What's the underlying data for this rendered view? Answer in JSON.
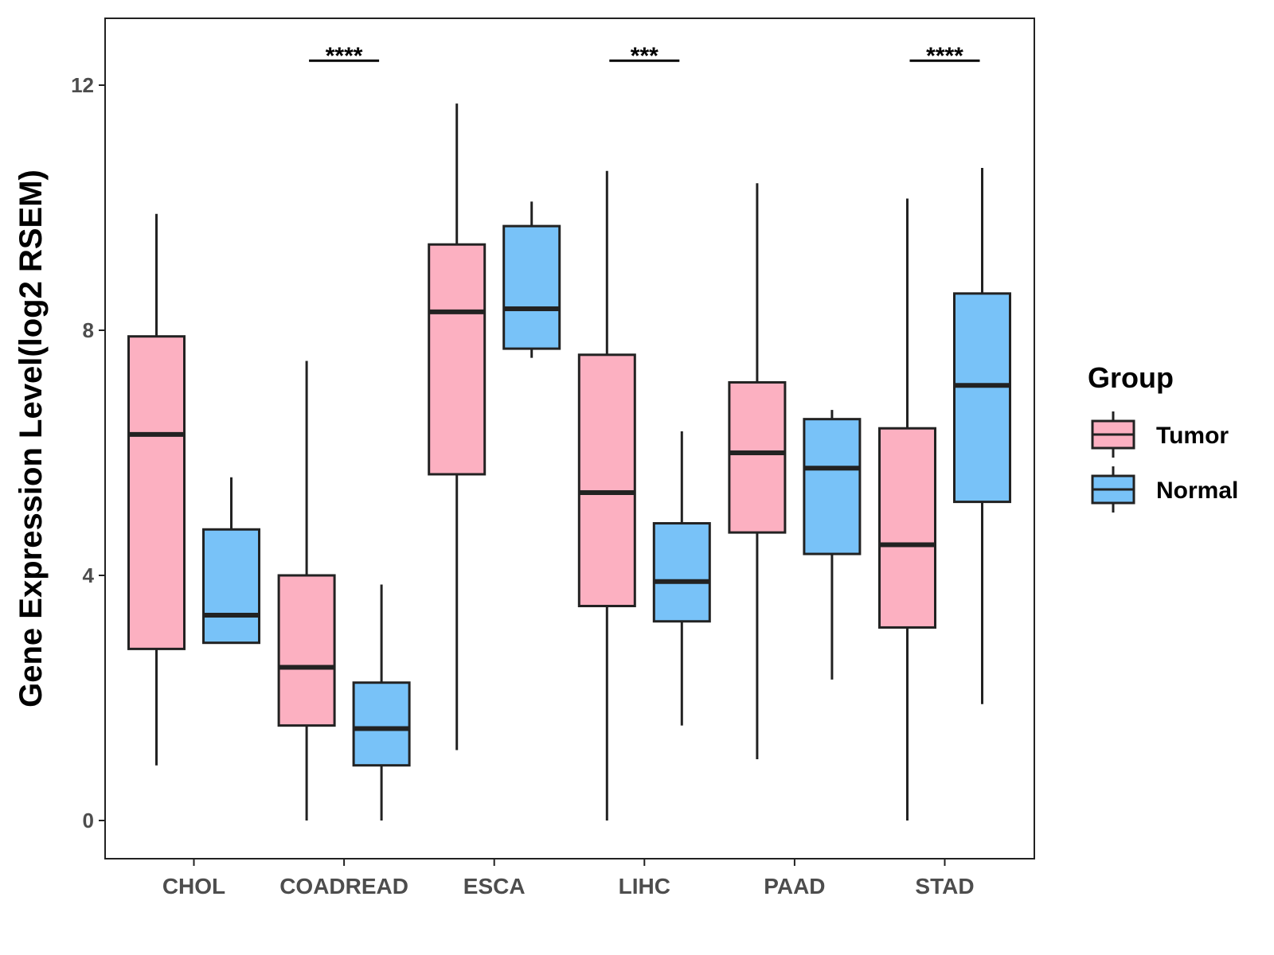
{
  "chart_data": {
    "type": "boxplot",
    "title": "",
    "xlabel": "",
    "ylabel": "Gene Expression Level(log2 RSEM)",
    "ylim": [
      -0.6,
      13.1
    ],
    "yticks": [
      0,
      4,
      8,
      12
    ],
    "ytick_labels": [
      "0",
      "4",
      "8",
      "12"
    ],
    "categories": [
      "CHOL",
      "COADREAD",
      "ESCA",
      "LIHC",
      "PAAD",
      "STAD"
    ],
    "legend": {
      "title": "Group",
      "position": "right",
      "entries": [
        "Tumor",
        "Normal"
      ]
    },
    "colors": {
      "Tumor": "#FCB0C1",
      "Normal": "#78C2F8",
      "outline": "#222222"
    },
    "series": [
      {
        "name": "Tumor",
        "stats": [
          {
            "whisker_low": 0.9,
            "q1": 2.8,
            "median": 6.3,
            "q3": 7.9,
            "whisker_high": 9.9
          },
          {
            "whisker_low": 0.0,
            "q1": 1.55,
            "median": 2.5,
            "q3": 4.0,
            "whisker_high": 7.5
          },
          {
            "whisker_low": 1.15,
            "q1": 5.65,
            "median": 8.3,
            "q3": 9.4,
            "whisker_high": 11.7
          },
          {
            "whisker_low": 0.0,
            "q1": 3.5,
            "median": 5.35,
            "q3": 7.6,
            "whisker_high": 10.6
          },
          {
            "whisker_low": 1.0,
            "q1": 4.7,
            "median": 6.0,
            "q3": 7.15,
            "whisker_high": 10.4
          },
          {
            "whisker_low": 0.0,
            "q1": 3.15,
            "median": 4.5,
            "q3": 6.4,
            "whisker_high": 10.15
          }
        ]
      },
      {
        "name": "Normal",
        "stats": [
          {
            "whisker_low": 2.9,
            "q1": 2.9,
            "median": 3.35,
            "q3": 4.75,
            "whisker_high": 5.6
          },
          {
            "whisker_low": 0.0,
            "q1": 0.9,
            "median": 1.5,
            "q3": 2.25,
            "whisker_high": 3.85
          },
          {
            "whisker_low": 7.55,
            "q1": 7.7,
            "median": 8.35,
            "q3": 9.7,
            "whisker_high": 10.1
          },
          {
            "whisker_low": 1.55,
            "q1": 3.25,
            "median": 3.9,
            "q3": 4.85,
            "whisker_high": 6.35
          },
          {
            "whisker_low": 2.3,
            "q1": 4.35,
            "median": 5.75,
            "q3": 6.55,
            "whisker_high": 6.7
          },
          {
            "whisker_low": 1.9,
            "q1": 5.2,
            "median": 7.1,
            "q3": 8.6,
            "whisker_high": 10.65
          }
        ]
      }
    ],
    "annotations": [
      {
        "category": "COADREAD",
        "text": "****",
        "y": 12.4
      },
      {
        "category": "LIHC",
        "text": "***",
        "y": 12.4
      },
      {
        "category": "STAD",
        "text": "****",
        "y": 12.4
      }
    ]
  }
}
